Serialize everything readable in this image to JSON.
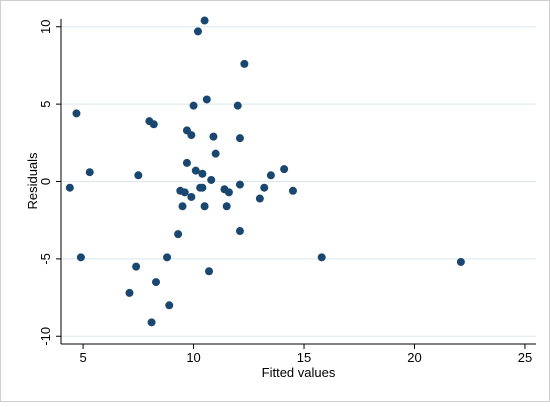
{
  "chart_data": {
    "type": "scatter",
    "xlabel": "Fitted values",
    "ylabel": "Residuals",
    "xlim": [
      4.0,
      25.5
    ],
    "ylim": [
      -10.5,
      10.5
    ],
    "x_ticks": [
      5,
      10,
      15,
      20,
      25
    ],
    "x_tick_labels": [
      "5",
      "10",
      "15",
      "20",
      "25"
    ],
    "y_ticks": [
      -10,
      -5,
      0,
      5,
      10
    ],
    "y_tick_labels": [
      "-10",
      "-5",
      "0",
      "5",
      "10"
    ],
    "grid": "horizontal",
    "legend": "none",
    "colors": {
      "page_background": "#ffffff",
      "plot_background": "#ffffff",
      "gridline": "#d9e6ee",
      "axis": "#000000",
      "marker": "#1a476f"
    },
    "points": [
      {
        "x": 4.4,
        "y": -0.4
      },
      {
        "x": 4.7,
        "y": 4.4
      },
      {
        "x": 4.9,
        "y": -4.9
      },
      {
        "x": 5.3,
        "y": 0.6
      },
      {
        "x": 7.1,
        "y": -7.2
      },
      {
        "x": 7.4,
        "y": -5.5
      },
      {
        "x": 7.5,
        "y": 0.4
      },
      {
        "x": 8.0,
        "y": 3.9
      },
      {
        "x": 8.1,
        "y": -9.1
      },
      {
        "x": 8.2,
        "y": 3.7
      },
      {
        "x": 8.3,
        "y": -6.5
      },
      {
        "x": 8.8,
        "y": -4.9
      },
      {
        "x": 8.9,
        "y": -8.0
      },
      {
        "x": 9.3,
        "y": -3.4
      },
      {
        "x": 9.4,
        "y": -0.6
      },
      {
        "x": 9.5,
        "y": -1.6
      },
      {
        "x": 9.6,
        "y": -0.7
      },
      {
        "x": 9.7,
        "y": 1.2
      },
      {
        "x": 9.7,
        "y": 3.3
      },
      {
        "x": 9.9,
        "y": 3.0
      },
      {
        "x": 9.9,
        "y": -1.0
      },
      {
        "x": 10.0,
        "y": 4.9
      },
      {
        "x": 10.1,
        "y": 0.7
      },
      {
        "x": 10.2,
        "y": 9.7
      },
      {
        "x": 10.3,
        "y": -0.4
      },
      {
        "x": 10.4,
        "y": 0.5
      },
      {
        "x": 10.4,
        "y": -0.4
      },
      {
        "x": 10.5,
        "y": 10.4
      },
      {
        "x": 10.5,
        "y": -1.6
      },
      {
        "x": 10.6,
        "y": 5.3
      },
      {
        "x": 10.7,
        "y": -5.8
      },
      {
        "x": 10.8,
        "y": 0.1
      },
      {
        "x": 10.9,
        "y": 2.9
      },
      {
        "x": 11.0,
        "y": 1.8
      },
      {
        "x": 11.4,
        "y": -0.5
      },
      {
        "x": 11.5,
        "y": -1.6
      },
      {
        "x": 11.6,
        "y": -0.7
      },
      {
        "x": 12.0,
        "y": 4.9
      },
      {
        "x": 12.1,
        "y": -0.2
      },
      {
        "x": 12.1,
        "y": -3.2
      },
      {
        "x": 12.1,
        "y": 2.8
      },
      {
        "x": 12.3,
        "y": 7.6
      },
      {
        "x": 13.0,
        "y": -1.1
      },
      {
        "x": 13.2,
        "y": -0.4
      },
      {
        "x": 13.5,
        "y": 0.4
      },
      {
        "x": 14.1,
        "y": 0.8
      },
      {
        "x": 14.5,
        "y": -0.6
      },
      {
        "x": 15.8,
        "y": -4.9
      },
      {
        "x": 22.1,
        "y": -5.2
      }
    ]
  }
}
